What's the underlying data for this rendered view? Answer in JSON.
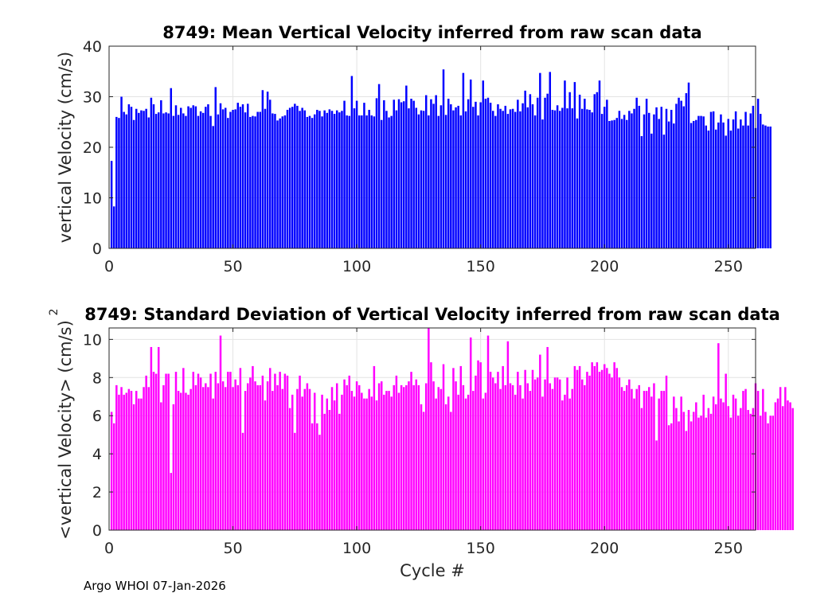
{
  "footer": "Argo WHOI 07-Jan-2026",
  "chart_data": [
    {
      "type": "bar",
      "title": "8749: Mean Vertical Velocity inferred from raw scan data",
      "xlabel": "",
      "ylabel": "vertical Velocity (cm/s)",
      "xlim": [
        0,
        261
      ],
      "ylim": [
        0,
        40
      ],
      "xticks": [
        0,
        50,
        100,
        150,
        200,
        250
      ],
      "yticks": [
        0,
        10,
        20,
        30,
        40
      ],
      "grid": true,
      "color": "#0000ff",
      "x_start": 1,
      "values": [
        17.3,
        8.3,
        26,
        25.8,
        30,
        27,
        26.5,
        28.5,
        28,
        25.4,
        27.6,
        26.8,
        27.3,
        27.2,
        27.6,
        25.9,
        29.8,
        28.5,
        26.6,
        26.9,
        29.3,
        26.7,
        26.9,
        26.7,
        31.7,
        26.2,
        28.3,
        26.4,
        27.8,
        26.7,
        26.2,
        28.1,
        27.8,
        28.3,
        28.1,
        26.2,
        27.1,
        26.8,
        28,
        28.5,
        26.2,
        24.2,
        31.9,
        26.5,
        28.7,
        27.5,
        27.8,
        25.8,
        27,
        27.4,
        27.5,
        28.8,
        28,
        28.5,
        26.9,
        28.6,
        26,
        26.2,
        26.1,
        27,
        27,
        31.3,
        27.6,
        31,
        29.4,
        26.7,
        26.6,
        25.3,
        25.7,
        26.1,
        26.3,
        27.4,
        27.8,
        28,
        28.6,
        28.2,
        27.2,
        27.8,
        27.3,
        26,
        26.2,
        25.8,
        26.5,
        27.4,
        27.2,
        26.1,
        27.3,
        26.8,
        27.5,
        27.2,
        26.6,
        27.3,
        26.9,
        27.2,
        29.2,
        26.3,
        26.2,
        34.1,
        27.7,
        29.2,
        26.3,
        26.3,
        28.8,
        26.3,
        27.4,
        26.3,
        26.1,
        29.7,
        32.5,
        25.4,
        29.3,
        27.2,
        25.9,
        26.2,
        29.4,
        27.3,
        29.5,
        28.9,
        29.1,
        32.2,
        27.7,
        29.6,
        29.2,
        27.8,
        26.5,
        27.3,
        27.2,
        30.3,
        26.3,
        29.5,
        28.6,
        30.3,
        26.2,
        28.3,
        35.4,
        26.4,
        29.6,
        28.5,
        27.3,
        27.9,
        28.2,
        26.3,
        34.7,
        27.1,
        29.5,
        33.4,
        28,
        29,
        26.3,
        28.9,
        33.2,
        29.6,
        29.8,
        28.8,
        27.2,
        26.2,
        28.5,
        27.6,
        27.2,
        28.2,
        26.6,
        27.5,
        27.6,
        27,
        29.4,
        27.1,
        28.7,
        31.2,
        27.9,
        30.5,
        28.5,
        26.3,
        29.8,
        34.7,
        25.5,
        29.8,
        30.6,
        34.9,
        27.4,
        27.3,
        28.3,
        27.2,
        27.8,
        33.2,
        27.7,
        30.9,
        27.7,
        32.9,
        25.7,
        30.4,
        27.6,
        29.6,
        27.5,
        27.4,
        26.9,
        30.5,
        30.9,
        33.2,
        26.6,
        28,
        29.4,
        25.2,
        25.3,
        25.4,
        25.8,
        27.2,
        25.6,
        26.4,
        25.4,
        27.2,
        26.7,
        27.6,
        29.8,
        28.2,
        22.2,
        26.5,
        29.6,
        26.8,
        22.7,
        26.5,
        27.9,
        25.6,
        28,
        22.5,
        27.6,
        25.1,
        27.4,
        24.7,
        28.6,
        29.8,
        29.2,
        28.1,
        30.7,
        32.8,
        24.8,
        25.2,
        25.4,
        26.2,
        26.2,
        26.1,
        24.3,
        23.3,
        27,
        27.1,
        23.5,
        24.9,
        26.5,
        24.9,
        22.3,
        25.6,
        23.3,
        25.5,
        27.1,
        23.7,
        25.5,
        24.3,
        27,
        24.3,
        26.7,
        28.2,
        23.8,
        29.6,
        26.6,
        24.5,
        24.3,
        24.1,
        24.1
      ]
    },
    {
      "type": "bar",
      "title": "8749: Standard Deviation of Vertical Velocity inferred from raw scan data",
      "xlabel": "Cycle #",
      "ylabel": "<vertical Velocity> (cm/s)",
      "ylabel_superscript": "2",
      "xlim": [
        0,
        261
      ],
      "ylim": [
        0,
        10.6
      ],
      "xticks": [
        0,
        50,
        100,
        150,
        200,
        250
      ],
      "yticks": [
        0,
        2,
        4,
        6,
        8,
        10
      ],
      "grid": true,
      "color": "#ff00ff",
      "x_start": 1,
      "values": [
        6.2,
        5.6,
        7.6,
        7.1,
        7.5,
        7.1,
        7.2,
        7.4,
        7.3,
        6.6,
        7.3,
        6.9,
        6.9,
        7.5,
        8.1,
        7.5,
        9.6,
        8.3,
        8.2,
        9.6,
        6.7,
        7.6,
        8.2,
        8.2,
        3.0,
        6.6,
        8.3,
        7.3,
        7.2,
        8.5,
        7.2,
        7.1,
        7.4,
        8.3,
        7.6,
        8.2,
        8.0,
        7.5,
        7.7,
        7.5,
        8.2,
        6.9,
        8.3,
        7.7,
        10.2,
        7.8,
        7.5,
        8.3,
        8.3,
        7.5,
        7.9,
        7.6,
        8.5,
        5.1,
        7.3,
        7.7,
        8.0,
        8.6,
        7.8,
        7.6,
        7.6,
        8.1,
        6.8,
        7.8,
        8.5,
        7.3,
        8.2,
        7.6,
        8.3,
        7.4,
        8.2,
        8.1,
        6.4,
        7.1,
        5.1,
        7.4,
        8.1,
        7.0,
        7.4,
        7.7,
        7.4,
        5.6,
        7.2,
        5.6,
        5.0,
        7.1,
        6.1,
        6.9,
        6.3,
        7.5,
        6.8,
        7.7,
        6.1,
        7.1,
        7.9,
        7.6,
        8.1,
        7.3,
        7.0,
        7.8,
        7.6,
        7.2,
        6.9,
        6.9,
        7.4,
        7.0,
        8.6,
        6.8,
        7.7,
        7.8,
        7.1,
        7.3,
        7.3,
        7.0,
        7.6,
        8.1,
        7.2,
        7.6,
        7.5,
        7.6,
        7.8,
        8.3,
        7.6,
        7.9,
        7.6,
        6.6,
        6.2,
        7.7,
        10.7,
        8.8,
        7.8,
        6.9,
        7.5,
        7.4,
        8.7,
        6.6,
        7.0,
        6.2,
        8.5,
        7.8,
        7.1,
        8.6,
        7.6,
        6.9,
        7.1,
        10.1,
        7.3,
        8.1,
        8.9,
        8.8,
        6.9,
        7.2,
        10.2,
        8.3,
        8.0,
        7.7,
        8.3,
        7.4,
        8.6,
        7.6,
        9.9,
        7.7,
        7.6,
        7.1,
        8.3,
        7.6,
        6.9,
        8.4,
        7.7,
        7.3,
        8.4,
        7.9,
        8.0,
        9.2,
        7.0,
        7.9,
        9.6,
        7.7,
        7.4,
        8.0,
        8.0,
        7.9,
        6.8,
        7.1,
        8.0,
        6.9,
        7.4,
        8.6,
        8.4,
        8.6,
        7.9,
        7.6,
        8.3,
        8.1,
        8.8,
        8.6,
        8.8,
        8.3,
        8.4,
        8.7,
        8.5,
        8.2,
        8.0,
        8.8,
        8.5,
        8.0,
        7.5,
        7.3,
        7.6,
        7.9,
        7.4,
        6.9,
        7.4,
        7.6,
        6.4,
        7.3,
        7.3,
        7.5,
        7.0,
        7.7,
        4.7,
        6.9,
        7.3,
        7.3,
        8.1,
        5.5,
        5.6,
        7.0,
        6.4,
        5.7,
        7.0,
        6.2,
        5.2,
        6.3,
        5.7,
        6.2,
        6.7,
        5.9,
        6.0,
        7.1,
        5.9,
        6.4,
        6.1,
        7.0,
        6.6,
        9.8,
        6.9,
        6.7,
        8.2,
        6.5,
        5.9,
        7.1,
        6.9,
        6.0,
        6.4,
        7.3,
        7.4,
        6.3,
        6.1,
        6.4,
        7.7,
        7.3,
        6.0,
        7.4,
        6.2,
        5.6,
        6.0,
        6.0,
        6.7,
        6.9,
        7.5,
        6.5,
        7.5,
        6.8,
        6.7,
        6.4
      ]
    }
  ]
}
